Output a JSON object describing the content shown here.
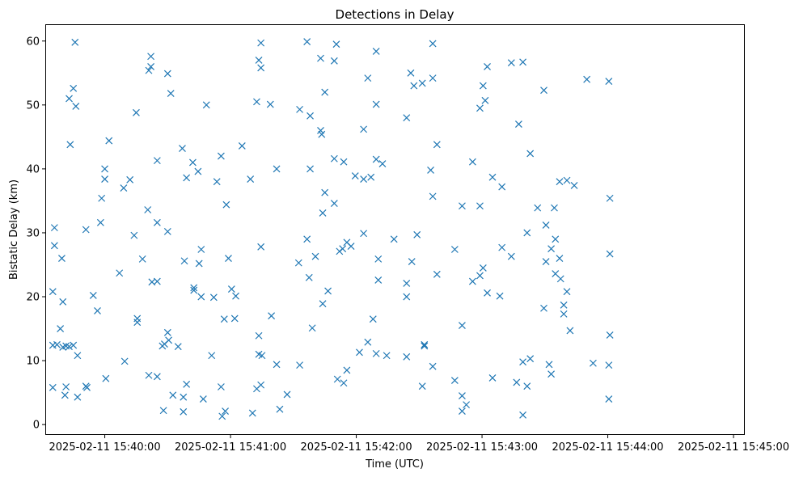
{
  "chart_data": {
    "type": "scatter",
    "title": "Detections in Delay",
    "xlabel": "Time (UTC)",
    "ylabel": "Bistatic Delay (km)",
    "x_axis_type": "time",
    "xlim": [
      "2025-02-11 15:39:32",
      "2025-02-11 15:45:05"
    ],
    "ylim": [
      -1.5,
      62.5
    ],
    "xticks": [
      "2025-02-11 15:40:00",
      "2025-02-11 15:41:00",
      "2025-02-11 15:42:00",
      "2025-02-11 15:43:00",
      "2025-02-11 15:44:00",
      "2025-02-11 15:45:00"
    ],
    "yticks": [
      0,
      10,
      20,
      30,
      40,
      50,
      60
    ],
    "grid": false,
    "marker": "x",
    "color": "#1f77b4",
    "series": [
      {
        "points": [
          [
            "2025-02-11 15:39:35.2",
            5.8
          ],
          [
            "2025-02-11 15:39:35.2",
            20.8
          ],
          [
            "2025-02-11 15:39:35.2",
            12.4
          ],
          [
            "2025-02-11 15:39:36.0",
            30.8
          ],
          [
            "2025-02-11 15:39:36.0",
            28.0
          ],
          [
            "2025-02-11 15:39:37.2",
            12.5
          ],
          [
            "2025-02-11 15:39:38.8",
            15.0
          ],
          [
            "2025-02-11 15:39:39.5",
            26.0
          ],
          [
            "2025-02-11 15:39:40.0",
            19.2
          ],
          [
            "2025-02-11 15:39:40.0",
            12.1
          ],
          [
            "2025-02-11 15:39:41.0",
            4.6
          ],
          [
            "2025-02-11 15:39:41.5",
            5.9
          ],
          [
            "2025-02-11 15:39:41.5",
            12.3
          ],
          [
            "2025-02-11 15:39:43.0",
            12.2
          ],
          [
            "2025-02-11 15:39:43.0",
            51.0
          ],
          [
            "2025-02-11 15:39:43.5",
            43.8
          ],
          [
            "2025-02-11 15:39:45.0",
            12.4
          ],
          [
            "2025-02-11 15:39:45.0",
            52.6
          ],
          [
            "2025-02-11 15:39:45.8",
            59.8
          ],
          [
            "2025-02-11 15:39:46.2",
            49.8
          ],
          [
            "2025-02-11 15:39:47.0",
            10.8
          ],
          [
            "2025-02-11 15:39:47.0",
            4.3
          ],
          [
            "2025-02-11 15:39:51.0",
            6.0
          ],
          [
            "2025-02-11 15:39:51.0",
            30.5
          ],
          [
            "2025-02-11 15:39:51.5",
            5.8
          ],
          [
            "2025-02-11 15:39:54.5",
            20.2
          ],
          [
            "2025-02-11 15:39:56.5",
            17.8
          ],
          [
            "2025-02-11 15:39:58.0",
            31.6
          ],
          [
            "2025-02-11 15:39:58.5",
            35.4
          ],
          [
            "2025-02-11 15:40:00.0",
            40.0
          ],
          [
            "2025-02-11 15:40:00.0",
            38.4
          ],
          [
            "2025-02-11 15:40:00.5",
            7.2
          ],
          [
            "2025-02-11 15:40:02.0",
            44.4
          ],
          [
            "2025-02-11 15:40:07.0",
            23.7
          ],
          [
            "2025-02-11 15:40:09.0",
            37.0
          ],
          [
            "2025-02-11 15:40:09.5",
            9.9
          ],
          [
            "2025-02-11 15:40:12.0",
            38.3
          ],
          [
            "2025-02-11 15:40:14.0",
            29.6
          ],
          [
            "2025-02-11 15:40:15.0",
            48.8
          ],
          [
            "2025-02-11 15:40:15.5",
            16.6
          ],
          [
            "2025-02-11 15:40:15.5",
            16.0
          ],
          [
            "2025-02-11 15:40:18.0",
            25.9
          ],
          [
            "2025-02-11 15:40:20.5",
            33.6
          ],
          [
            "2025-02-11 15:40:21.0",
            7.7
          ],
          [
            "2025-02-11 15:40:21.0",
            55.4
          ],
          [
            "2025-02-11 15:40:22.0",
            57.6
          ],
          [
            "2025-02-11 15:40:22.0",
            56.0
          ],
          [
            "2025-02-11 15:40:22.5",
            22.3
          ],
          [
            "2025-02-11 15:40:25.0",
            41.3
          ],
          [
            "2025-02-11 15:40:25.0",
            31.6
          ],
          [
            "2025-02-11 15:40:25.0",
            22.4
          ],
          [
            "2025-02-11 15:40:25.0",
            7.5
          ],
          [
            "2025-02-11 15:40:27.5",
            12.3
          ],
          [
            "2025-02-11 15:40:28.0",
            2.2
          ],
          [
            "2025-02-11 15:40:28.5",
            12.6
          ],
          [
            "2025-02-11 15:40:30.0",
            54.9
          ],
          [
            "2025-02-11 15:40:30.0",
            30.2
          ],
          [
            "2025-02-11 15:40:30.0",
            14.4
          ],
          [
            "2025-02-11 15:40:30.5",
            13.2
          ],
          [
            "2025-02-11 15:40:31.5",
            51.8
          ],
          [
            "2025-02-11 15:40:32.5",
            4.6
          ],
          [
            "2025-02-11 15:40:35.0",
            12.2
          ],
          [
            "2025-02-11 15:40:37.0",
            43.2
          ],
          [
            "2025-02-11 15:40:37.5",
            4.3
          ],
          [
            "2025-02-11 15:40:37.5",
            2.0
          ],
          [
            "2025-02-11 15:40:38.0",
            25.6
          ],
          [
            "2025-02-11 15:40:39.0",
            6.3
          ],
          [
            "2025-02-11 15:40:39.0",
            38.6
          ],
          [
            "2025-02-11 15:40:42.0",
            41.0
          ],
          [
            "2025-02-11 15:40:42.5",
            21.4
          ],
          [
            "2025-02-11 15:40:42.5",
            21.0
          ],
          [
            "2025-02-11 15:40:44.5",
            39.6
          ],
          [
            "2025-02-11 15:40:45.0",
            25.2
          ],
          [
            "2025-02-11 15:40:46.0",
            27.4
          ],
          [
            "2025-02-11 15:40:46.0",
            20.0
          ],
          [
            "2025-02-11 15:40:47.0",
            4.0
          ],
          [
            "2025-02-11 15:40:48.5",
            50.0
          ],
          [
            "2025-02-11 15:40:51.0",
            10.8
          ],
          [
            "2025-02-11 15:40:52.0",
            19.9
          ],
          [
            "2025-02-11 15:40:53.5",
            38.0
          ],
          [
            "2025-02-11 15:40:55.5",
            42.0
          ],
          [
            "2025-02-11 15:40:55.5",
            5.9
          ],
          [
            "2025-02-11 15:40:56.0",
            1.3
          ],
          [
            "2025-02-11 15:40:57.0",
            16.5
          ],
          [
            "2025-02-11 15:40:57.5",
            2.1
          ],
          [
            "2025-02-11 15:40:58.0",
            34.4
          ],
          [
            "2025-02-11 15:40:59.0",
            26.0
          ],
          [
            "2025-02-11 15:41:00.5",
            21.2
          ],
          [
            "2025-02-11 15:41:02.0",
            16.6
          ],
          [
            "2025-02-11 15:41:02.5",
            20.1
          ],
          [
            "2025-02-11 15:41:05.5",
            43.6
          ],
          [
            "2025-02-11 15:41:09.5",
            38.4
          ],
          [
            "2025-02-11 15:41:10.5",
            1.8
          ],
          [
            "2025-02-11 15:41:12.5",
            50.5
          ],
          [
            "2025-02-11 15:41:12.5",
            5.6
          ],
          [
            "2025-02-11 15:41:13.5",
            57.0
          ],
          [
            "2025-02-11 15:41:13.5",
            13.9
          ],
          [
            "2025-02-11 15:41:13.5",
            11.0
          ],
          [
            "2025-02-11 15:41:14.5",
            59.7
          ],
          [
            "2025-02-11 15:41:14.5",
            55.8
          ],
          [
            "2025-02-11 15:41:14.5",
            27.8
          ],
          [
            "2025-02-11 15:41:14.5",
            6.2
          ],
          [
            "2025-02-11 15:41:15.0",
            10.8
          ],
          [
            "2025-02-11 15:41:19.0",
            50.1
          ],
          [
            "2025-02-11 15:41:19.5",
            17.0
          ],
          [
            "2025-02-11 15:41:22.0",
            40.0
          ],
          [
            "2025-02-11 15:41:22.0",
            9.4
          ],
          [
            "2025-02-11 15:41:23.5",
            2.4
          ],
          [
            "2025-02-11 15:41:27.0",
            4.7
          ],
          [
            "2025-02-11 15:41:32.5",
            25.3
          ],
          [
            "2025-02-11 15:41:33.0",
            49.3
          ],
          [
            "2025-02-11 15:41:33.0",
            9.3
          ],
          [
            "2025-02-11 15:41:36.5",
            59.9
          ],
          [
            "2025-02-11 15:41:36.5",
            29.0
          ],
          [
            "2025-02-11 15:41:37.5",
            23.0
          ],
          [
            "2025-02-11 15:41:38.0",
            48.3
          ],
          [
            "2025-02-11 15:41:38.0",
            40.0
          ],
          [
            "2025-02-11 15:41:39.0",
            15.1
          ],
          [
            "2025-02-11 15:41:40.5",
            26.3
          ],
          [
            "2025-02-11 15:41:43.0",
            57.3
          ],
          [
            "2025-02-11 15:41:43.0",
            46.0
          ],
          [
            "2025-02-11 15:41:43.5",
            45.4
          ],
          [
            "2025-02-11 15:41:44.0",
            33.1
          ],
          [
            "2025-02-11 15:41:44.0",
            18.9
          ],
          [
            "2025-02-11 15:41:45.0",
            52.0
          ],
          [
            "2025-02-11 15:41:45.0",
            36.3
          ],
          [
            "2025-02-11 15:41:46.5",
            20.9
          ],
          [
            "2025-02-11 15:41:49.5",
            56.9
          ],
          [
            "2025-02-11 15:41:49.5",
            41.6
          ],
          [
            "2025-02-11 15:41:49.5",
            34.6
          ],
          [
            "2025-02-11 15:41:50.5",
            59.5
          ],
          [
            "2025-02-11 15:41:51.0",
            7.1
          ],
          [
            "2025-02-11 15:41:52.0",
            27.1
          ],
          [
            "2025-02-11 15:41:53.5",
            27.5
          ],
          [
            "2025-02-11 15:41:54.0",
            41.1
          ],
          [
            "2025-02-11 15:41:54.0",
            6.5
          ],
          [
            "2025-02-11 15:41:55.5",
            28.5
          ],
          [
            "2025-02-11 15:41:55.5",
            8.5
          ],
          [
            "2025-02-11 15:41:57.5",
            27.9
          ],
          [
            "2025-02-11 15:41:59.5",
            38.9
          ],
          [
            "2025-02-11 15:42:01.5",
            11.3
          ],
          [
            "2025-02-11 15:42:03.5",
            46.2
          ],
          [
            "2025-02-11 15:42:03.5",
            38.4
          ],
          [
            "2025-02-11 15:42:03.5",
            29.9
          ],
          [
            "2025-02-11 15:42:05.5",
            54.2
          ],
          [
            "2025-02-11 15:42:05.5",
            12.9
          ],
          [
            "2025-02-11 15:42:07.0",
            38.7
          ],
          [
            "2025-02-11 15:42:08.0",
            16.5
          ],
          [
            "2025-02-11 15:42:09.5",
            58.4
          ],
          [
            "2025-02-11 15:42:09.5",
            50.1
          ],
          [
            "2025-02-11 15:42:09.5",
            41.5
          ],
          [
            "2025-02-11 15:42:09.5",
            11.1
          ],
          [
            "2025-02-11 15:42:10.5",
            25.9
          ],
          [
            "2025-02-11 15:42:10.5",
            22.6
          ],
          [
            "2025-02-11 15:42:12.5",
            40.8
          ],
          [
            "2025-02-11 15:42:14.5",
            10.8
          ],
          [
            "2025-02-11 15:42:18.0",
            29.0
          ],
          [
            "2025-02-11 15:42:24.0",
            48.0
          ],
          [
            "2025-02-11 15:42:24.0",
            22.1
          ],
          [
            "2025-02-11 15:42:24.0",
            20.0
          ],
          [
            "2025-02-11 15:42:24.0",
            10.6
          ],
          [
            "2025-02-11 15:42:26.0",
            55.0
          ],
          [
            "2025-02-11 15:42:26.5",
            25.5
          ],
          [
            "2025-02-11 15:42:27.5",
            53.0
          ],
          [
            "2025-02-11 15:42:29.0",
            29.7
          ],
          [
            "2025-02-11 15:42:31.5",
            53.4
          ],
          [
            "2025-02-11 15:42:31.5",
            6.0
          ],
          [
            "2025-02-11 15:42:32.5",
            12.5
          ],
          [
            "2025-02-11 15:42:32.5",
            12.3
          ],
          [
            "2025-02-11 15:42:35.5",
            39.8
          ],
          [
            "2025-02-11 15:42:36.5",
            59.6
          ],
          [
            "2025-02-11 15:42:36.5",
            54.2
          ],
          [
            "2025-02-11 15:42:36.5",
            35.7
          ],
          [
            "2025-02-11 15:42:36.5",
            9.1
          ],
          [
            "2025-02-11 15:42:38.5",
            43.8
          ],
          [
            "2025-02-11 15:42:38.5",
            23.5
          ],
          [
            "2025-02-11 15:42:47.0",
            27.4
          ],
          [
            "2025-02-11 15:42:47.0",
            6.9
          ],
          [
            "2025-02-11 15:42:50.5",
            34.2
          ],
          [
            "2025-02-11 15:42:50.5",
            15.5
          ],
          [
            "2025-02-11 15:42:50.5",
            4.5
          ],
          [
            "2025-02-11 15:42:50.5",
            2.1
          ],
          [
            "2025-02-11 15:42:52.5",
            3.1
          ],
          [
            "2025-02-11 15:42:55.5",
            41.1
          ],
          [
            "2025-02-11 15:42:55.5",
            22.4
          ],
          [
            "2025-02-11 15:42:59.0",
            49.5
          ],
          [
            "2025-02-11 15:42:59.0",
            34.2
          ],
          [
            "2025-02-11 15:42:59.0",
            23.3
          ],
          [
            "2025-02-11 15:43:00.5",
            53.0
          ],
          [
            "2025-02-11 15:43:00.5",
            24.5
          ],
          [
            "2025-02-11 15:43:01.5",
            50.7
          ],
          [
            "2025-02-11 15:43:02.5",
            56.0
          ],
          [
            "2025-02-11 15:43:02.5",
            20.6
          ],
          [
            "2025-02-11 15:43:05.0",
            38.7
          ],
          [
            "2025-02-11 15:43:05.0",
            7.3
          ],
          [
            "2025-02-11 15:43:08.5",
            20.1
          ],
          [
            "2025-02-11 15:43:09.5",
            37.2
          ],
          [
            "2025-02-11 15:43:09.5",
            27.7
          ],
          [
            "2025-02-11 15:43:14.0",
            56.6
          ],
          [
            "2025-02-11 15:43:14.0",
            26.3
          ],
          [
            "2025-02-11 15:43:16.5",
            6.6
          ],
          [
            "2025-02-11 15:43:17.5",
            47.0
          ],
          [
            "2025-02-11 15:43:19.5",
            56.7
          ],
          [
            "2025-02-11 15:43:19.5",
            9.8
          ],
          [
            "2025-02-11 15:43:19.5",
            1.5
          ],
          [
            "2025-02-11 15:43:21.5",
            30.0
          ],
          [
            "2025-02-11 15:43:21.5",
            6.0
          ],
          [
            "2025-02-11 15:43:23.0",
            42.4
          ],
          [
            "2025-02-11 15:43:23.0",
            10.3
          ],
          [
            "2025-02-11 15:43:26.5",
            33.9
          ],
          [
            "2025-02-11 15:43:29.5",
            52.3
          ],
          [
            "2025-02-11 15:43:29.5",
            18.2
          ],
          [
            "2025-02-11 15:43:30.5",
            31.2
          ],
          [
            "2025-02-11 15:43:30.5",
            25.5
          ],
          [
            "2025-02-11 15:43:32.0",
            9.4
          ],
          [
            "2025-02-11 15:43:33.0",
            27.5
          ],
          [
            "2025-02-11 15:43:33.0",
            7.9
          ],
          [
            "2025-02-11 15:43:34.5",
            33.9
          ],
          [
            "2025-02-11 15:43:35.0",
            29.0
          ],
          [
            "2025-02-11 15:43:35.0",
            23.6
          ],
          [
            "2025-02-11 15:43:37.0",
            38.0
          ],
          [
            "2025-02-11 15:43:37.0",
            26.0
          ],
          [
            "2025-02-11 15:43:37.5",
            22.8
          ],
          [
            "2025-02-11 15:43:39.0",
            18.7
          ],
          [
            "2025-02-11 15:43:39.0",
            17.3
          ],
          [
            "2025-02-11 15:43:40.5",
            38.2
          ],
          [
            "2025-02-11 15:43:40.5",
            20.8
          ],
          [
            "2025-02-11 15:43:42.0",
            14.7
          ],
          [
            "2025-02-11 15:43:44.0",
            37.4
          ],
          [
            "2025-02-11 15:43:50.0",
            54.0
          ],
          [
            "2025-02-11 15:43:53.0",
            9.6
          ],
          [
            "2025-02-11 15:44:00.5",
            53.7
          ],
          [
            "2025-02-11 15:44:00.5",
            9.3
          ],
          [
            "2025-02-11 15:44:00.5",
            4.0
          ],
          [
            "2025-02-11 15:44:01.0",
            35.4
          ],
          [
            "2025-02-11 15:44:01.0",
            26.7
          ],
          [
            "2025-02-11 15:44:01.0",
            14.0
          ]
        ]
      }
    ]
  }
}
